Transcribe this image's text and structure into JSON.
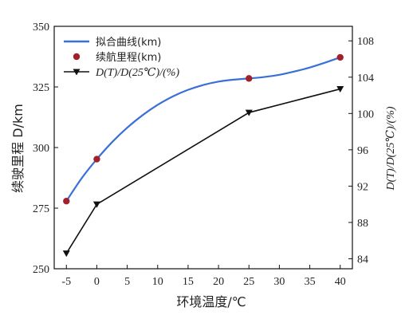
{
  "chart_data": {
    "type": "line",
    "x_axis": {
      "label": "环境温度/℃",
      "ticks": [
        -5,
        0,
        5,
        10,
        15,
        20,
        25,
        30,
        35,
        40
      ],
      "range": [
        -7,
        42
      ]
    },
    "y_left": {
      "label": "续驶里程 D/km",
      "ticks": [
        250,
        275,
        300,
        325,
        350
      ],
      "range": [
        250,
        350
      ]
    },
    "y_right": {
      "label": "D(T)/D(25℃)/(%)",
      "ticks": [
        84,
        88,
        92,
        96,
        100,
        104,
        108
      ],
      "range": [
        82.9,
        109.6
      ]
    },
    "series": [
      {
        "name": "拟合曲线(km)",
        "kind": "curve",
        "axis": "left",
        "color": "#3a6fd8",
        "x": [
          -5,
          -2.5,
          0,
          2.5,
          5,
          7.5,
          10,
          12.5,
          15,
          17.5,
          20,
          22.5,
          25,
          27.5,
          30,
          32.5,
          35,
          37.5,
          40
        ],
        "y": [
          277.9,
          287.3,
          295.2,
          302.2,
          308.2,
          313.3,
          317.6,
          321.1,
          323.8,
          325.8,
          327.2,
          328.0,
          328.5,
          329.1,
          330.0,
          331.4,
          333.0,
          335.0,
          337.2
        ]
      },
      {
        "name": "续航里程(km)",
        "kind": "points",
        "axis": "left",
        "color": "#a0212b",
        "x": [
          -5,
          0,
          25,
          40
        ],
        "y": [
          277.9,
          295.2,
          328.5,
          337.2
        ]
      },
      {
        "name": "D(T)/D(25℃)/(%)",
        "kind": "line-triangle",
        "axis": "right",
        "color": "#111111",
        "x": [
          -5,
          0,
          25,
          40
        ],
        "y": [
          84.6,
          90.0,
          100.1,
          102.7
        ]
      }
    ],
    "legend": {
      "placement": "top-left",
      "entries": [
        {
          "prefix": "",
          "text": "拟合曲线(km)",
          "marker": "line"
        },
        {
          "prefix": "",
          "text": "续航里程(km)",
          "marker": "dot"
        },
        {
          "prefix": "D(T)/D(25℃)/(%)",
          "text": "",
          "marker": "triangle-line"
        }
      ]
    },
    "grid": false
  }
}
